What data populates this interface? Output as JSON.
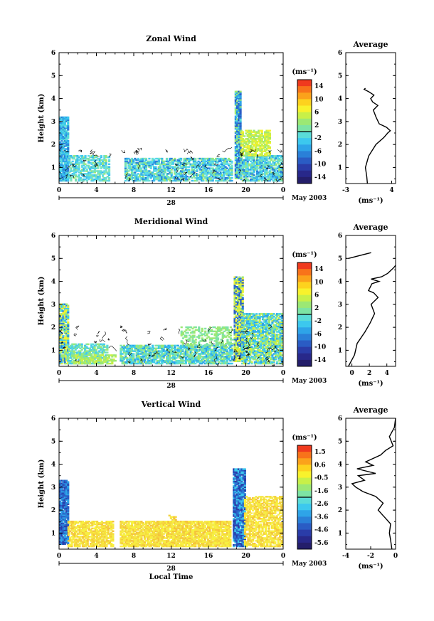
{
  "chart_data": [
    {
      "type": "heatmap",
      "title": "Zonal Wind",
      "ylabel": "Height (km)",
      "colorbar_label": "(ms⁻¹)",
      "colorbar_ticks": [
        "14",
        "10",
        "6",
        "2",
        "-2",
        "-6",
        "-10",
        "-14"
      ],
      "ylim": [
        0.3,
        6
      ],
      "yticks": [
        "1",
        "2",
        "3",
        "4",
        "5",
        "6"
      ],
      "xlim": [
        0,
        24
      ],
      "xticks": [
        "0",
        "4",
        "8",
        "12",
        "16",
        "20",
        "0"
      ],
      "date_label": "28",
      "month_label": "May 2003",
      "profile": {
        "title": "Average",
        "xlabel": "(ms⁻¹)",
        "xlim": [
          -3,
          4.6
        ],
        "xticks": [
          "-3",
          "4"
        ],
        "xtick_values": [
          -3,
          4
        ],
        "x": [
          0.3,
          0.2,
          0.0,
          0.5,
          1.6,
          2.8,
          3.4,
          3.8,
          3.2,
          2.1,
          1.6,
          1.2,
          1.9,
          1.1,
          0.8,
          1.3,
          0.5,
          -0.2,
          0.0
        ],
        "y": [
          0.3,
          0.6,
          1.0,
          1.5,
          2.0,
          2.3,
          2.5,
          2.6,
          2.75,
          2.9,
          3.2,
          3.5,
          3.7,
          3.85,
          4.0,
          4.15,
          4.3,
          4.4,
          4.45
        ]
      }
    },
    {
      "type": "heatmap",
      "title": "Meridional Wind",
      "ylabel": "Height (km)",
      "colorbar_label": "(ms⁻¹)",
      "colorbar_ticks": [
        "14",
        "10",
        "6",
        "2",
        "-2",
        "-6",
        "-10",
        "-14"
      ],
      "ylim": [
        0.3,
        6
      ],
      "yticks": [
        "1",
        "2",
        "3",
        "4",
        "5",
        "6"
      ],
      "xlim": [
        0,
        24
      ],
      "xticks": [
        "0",
        "4",
        "8",
        "12",
        "16",
        "20",
        "0"
      ],
      "date_label": "28",
      "month_label": "May 2003",
      "profile": {
        "title": "Average",
        "xlabel": "(ms⁻¹)",
        "xlim": [
          -0.7,
          5
        ],
        "xticks": [
          "0",
          "2",
          "4"
        ],
        "xtick_values": [
          0,
          2,
          4
        ],
        "x": [
          -0.4,
          0.3,
          0.6,
          1.5,
          2.1,
          2.6,
          2.2,
          3.0,
          2.5,
          1.9,
          2.3,
          3.1,
          2.2,
          3.4,
          4.1,
          4.8,
          5.0
        ],
        "y": [
          0.3,
          0.8,
          1.3,
          1.8,
          2.2,
          2.6,
          3.0,
          3.3,
          3.5,
          3.6,
          3.9,
          4.0,
          4.1,
          4.2,
          4.35,
          4.6,
          4.7
        ],
        "x2": [
          -0.4,
          2.2
        ],
        "y2": [
          5.0,
          5.25
        ]
      }
    },
    {
      "type": "heatmap",
      "title": "Vertical Wind",
      "ylabel": "Height (km)",
      "colorbar_label": "(ms⁻¹)",
      "colorbar_ticks": [
        "1.5",
        "0.6",
        "-0.5",
        "-1.6",
        "-2.6",
        "-3.6",
        "-4.6",
        "-5.6"
      ],
      "ylim": [
        0.3,
        6
      ],
      "yticks": [
        "1",
        "2",
        "3",
        "4",
        "5",
        "6"
      ],
      "xlim": [
        0,
        24
      ],
      "xticks": [
        "0",
        "4",
        "8",
        "12",
        "16",
        "20",
        "0"
      ],
      "date_label": "28",
      "month_label": "May 2003",
      "xlabel": "Local Time",
      "profile": {
        "title": "Average",
        "xlabel": "(ms⁻¹)",
        "xlim": [
          -4,
          0
        ],
        "xticks": [
          "-4",
          "-2",
          "0"
        ],
        "xtick_values": [
          -4,
          -2,
          0
        ],
        "x": [
          -0.3,
          -0.4,
          -0.5,
          -0.4,
          -0.9,
          -1.4,
          -1.0,
          -1.6,
          -2.6,
          -3.2,
          -3.5,
          -2.5,
          -3.0,
          -1.6,
          -3.1,
          -1.8,
          -2.4,
          -1.2,
          -0.8,
          -0.2,
          -0.5,
          -0.1,
          0.0
        ],
        "y": [
          0.3,
          0.7,
          1.0,
          1.4,
          1.7,
          2.0,
          2.3,
          2.6,
          2.8,
          3.0,
          3.15,
          3.3,
          3.5,
          3.6,
          3.8,
          3.95,
          4.1,
          4.4,
          4.6,
          4.8,
          5.2,
          5.6,
          6.0
        ]
      }
    }
  ]
}
